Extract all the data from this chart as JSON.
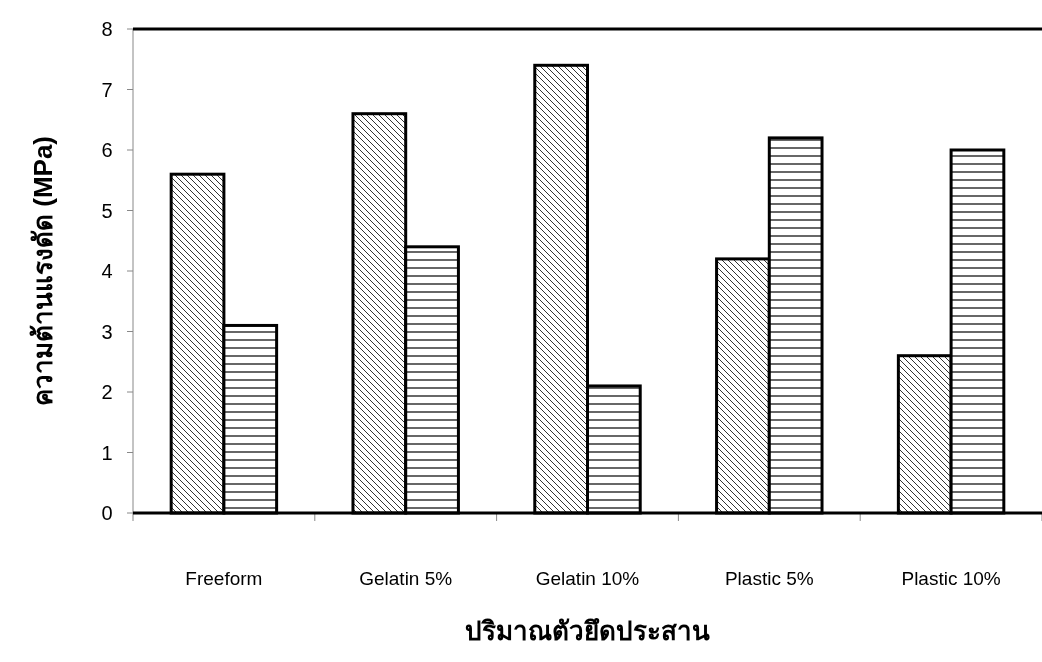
{
  "chart_data": {
    "type": "bar",
    "categories": [
      "Freeform",
      "Gelatin 5%",
      "Gelatin 10%",
      "Plastic 5%",
      "Plastic 10%"
    ],
    "series": [
      {
        "color": "#000000",
        "values": [
          5.6,
          6.6,
          7.4,
          4.2,
          2.6
        ]
      },
      {
        "color": "#000000",
        "values": [
          3.1,
          4.4,
          2.1,
          6.2,
          6.0
        ]
      }
    ],
    "xlabel": "ปริมาณตัวยึดประสาน",
    "ylabel": "ความต้านแรงดัด (MPa)",
    "ylim": [
      0,
      8
    ],
    "yticks": [
      0,
      1,
      2,
      3,
      4,
      5,
      6,
      7,
      8
    ]
  }
}
